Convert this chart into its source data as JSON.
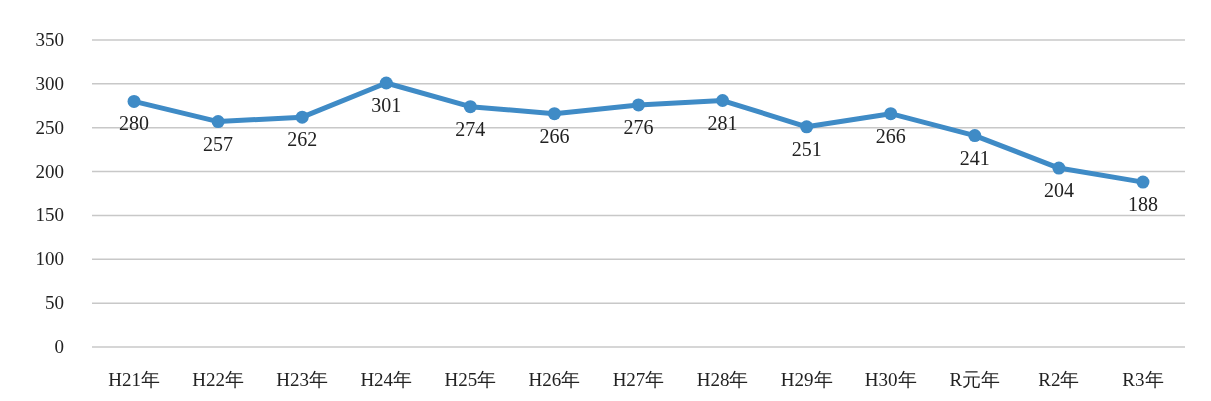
{
  "chart_data": {
    "type": "line",
    "categories": [
      "H21年",
      "H22年",
      "H23年",
      "H24年",
      "H25年",
      "H26年",
      "H27年",
      "H28年",
      "H29年",
      "H30年",
      "R元年",
      "R2年",
      "R3年"
    ],
    "values": [
      280,
      257,
      262,
      301,
      274,
      266,
      276,
      281,
      251,
      266,
      241,
      204,
      188
    ],
    "color": "#3f8bc6",
    "ylim": [
      0,
      350
    ],
    "yticks": [
      0,
      50,
      100,
      150,
      200,
      250,
      300,
      350
    ],
    "grid": "y",
    "marker": "circle",
    "data_labels": true
  }
}
